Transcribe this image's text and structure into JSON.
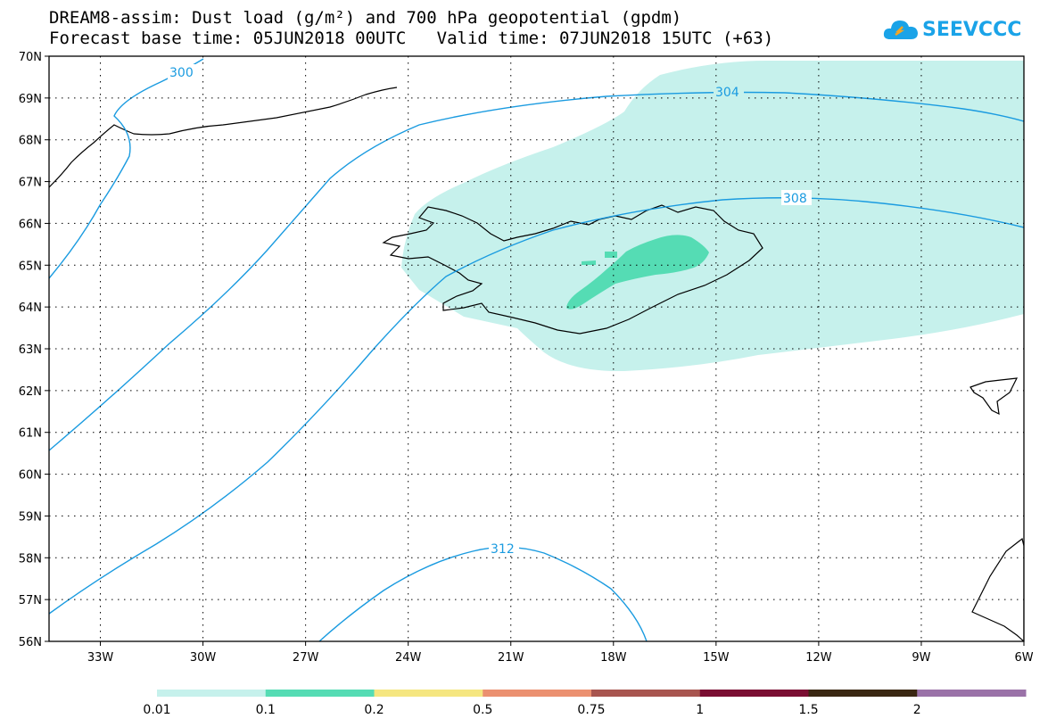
{
  "header": {
    "title_line1": "DREAM8-assim: Dust load (g/m²) and 700 hPa geopotential (gpdm)",
    "title_line2": "Forecast base time: 05JUN2018 00UTC   Valid time: 07JUN2018 15UTC (+63)"
  },
  "logo": {
    "text": "SEEVCCC",
    "icon": "cloud-icon",
    "color": "#1aa3e8"
  },
  "map": {
    "lon_range": [
      -34.5,
      -6
    ],
    "lat_range": [
      56,
      70
    ],
    "lat_labels": [
      "70N",
      "69N",
      "68N",
      "67N",
      "66N",
      "65N",
      "64N",
      "63N",
      "62N",
      "61N",
      "60N",
      "59N",
      "58N",
      "57N",
      "56N"
    ],
    "lon_labels": [
      "33W",
      "30W",
      "27W",
      "24W",
      "21W",
      "18W",
      "15W",
      "12W",
      "9W",
      "6W"
    ],
    "gridlines": "dotted",
    "contour_color": "#1a9be0",
    "contours": [
      {
        "value": "300",
        "label": "300"
      },
      {
        "value": "304",
        "label": "304"
      },
      {
        "value": "308",
        "label": "308"
      },
      {
        "value": "312",
        "label": "312"
      }
    ]
  },
  "colorbar": {
    "labels": [
      "0.01",
      "0.1",
      "0.2",
      "0.5",
      "0.75",
      "1",
      "1.5",
      "2"
    ],
    "colors": [
      "#c6f1ec",
      "#55dcb4",
      "#f5e680",
      "#eb9070",
      "#a8554f",
      "#7a0e32",
      "#3a2712",
      "#9a72a8"
    ]
  }
}
